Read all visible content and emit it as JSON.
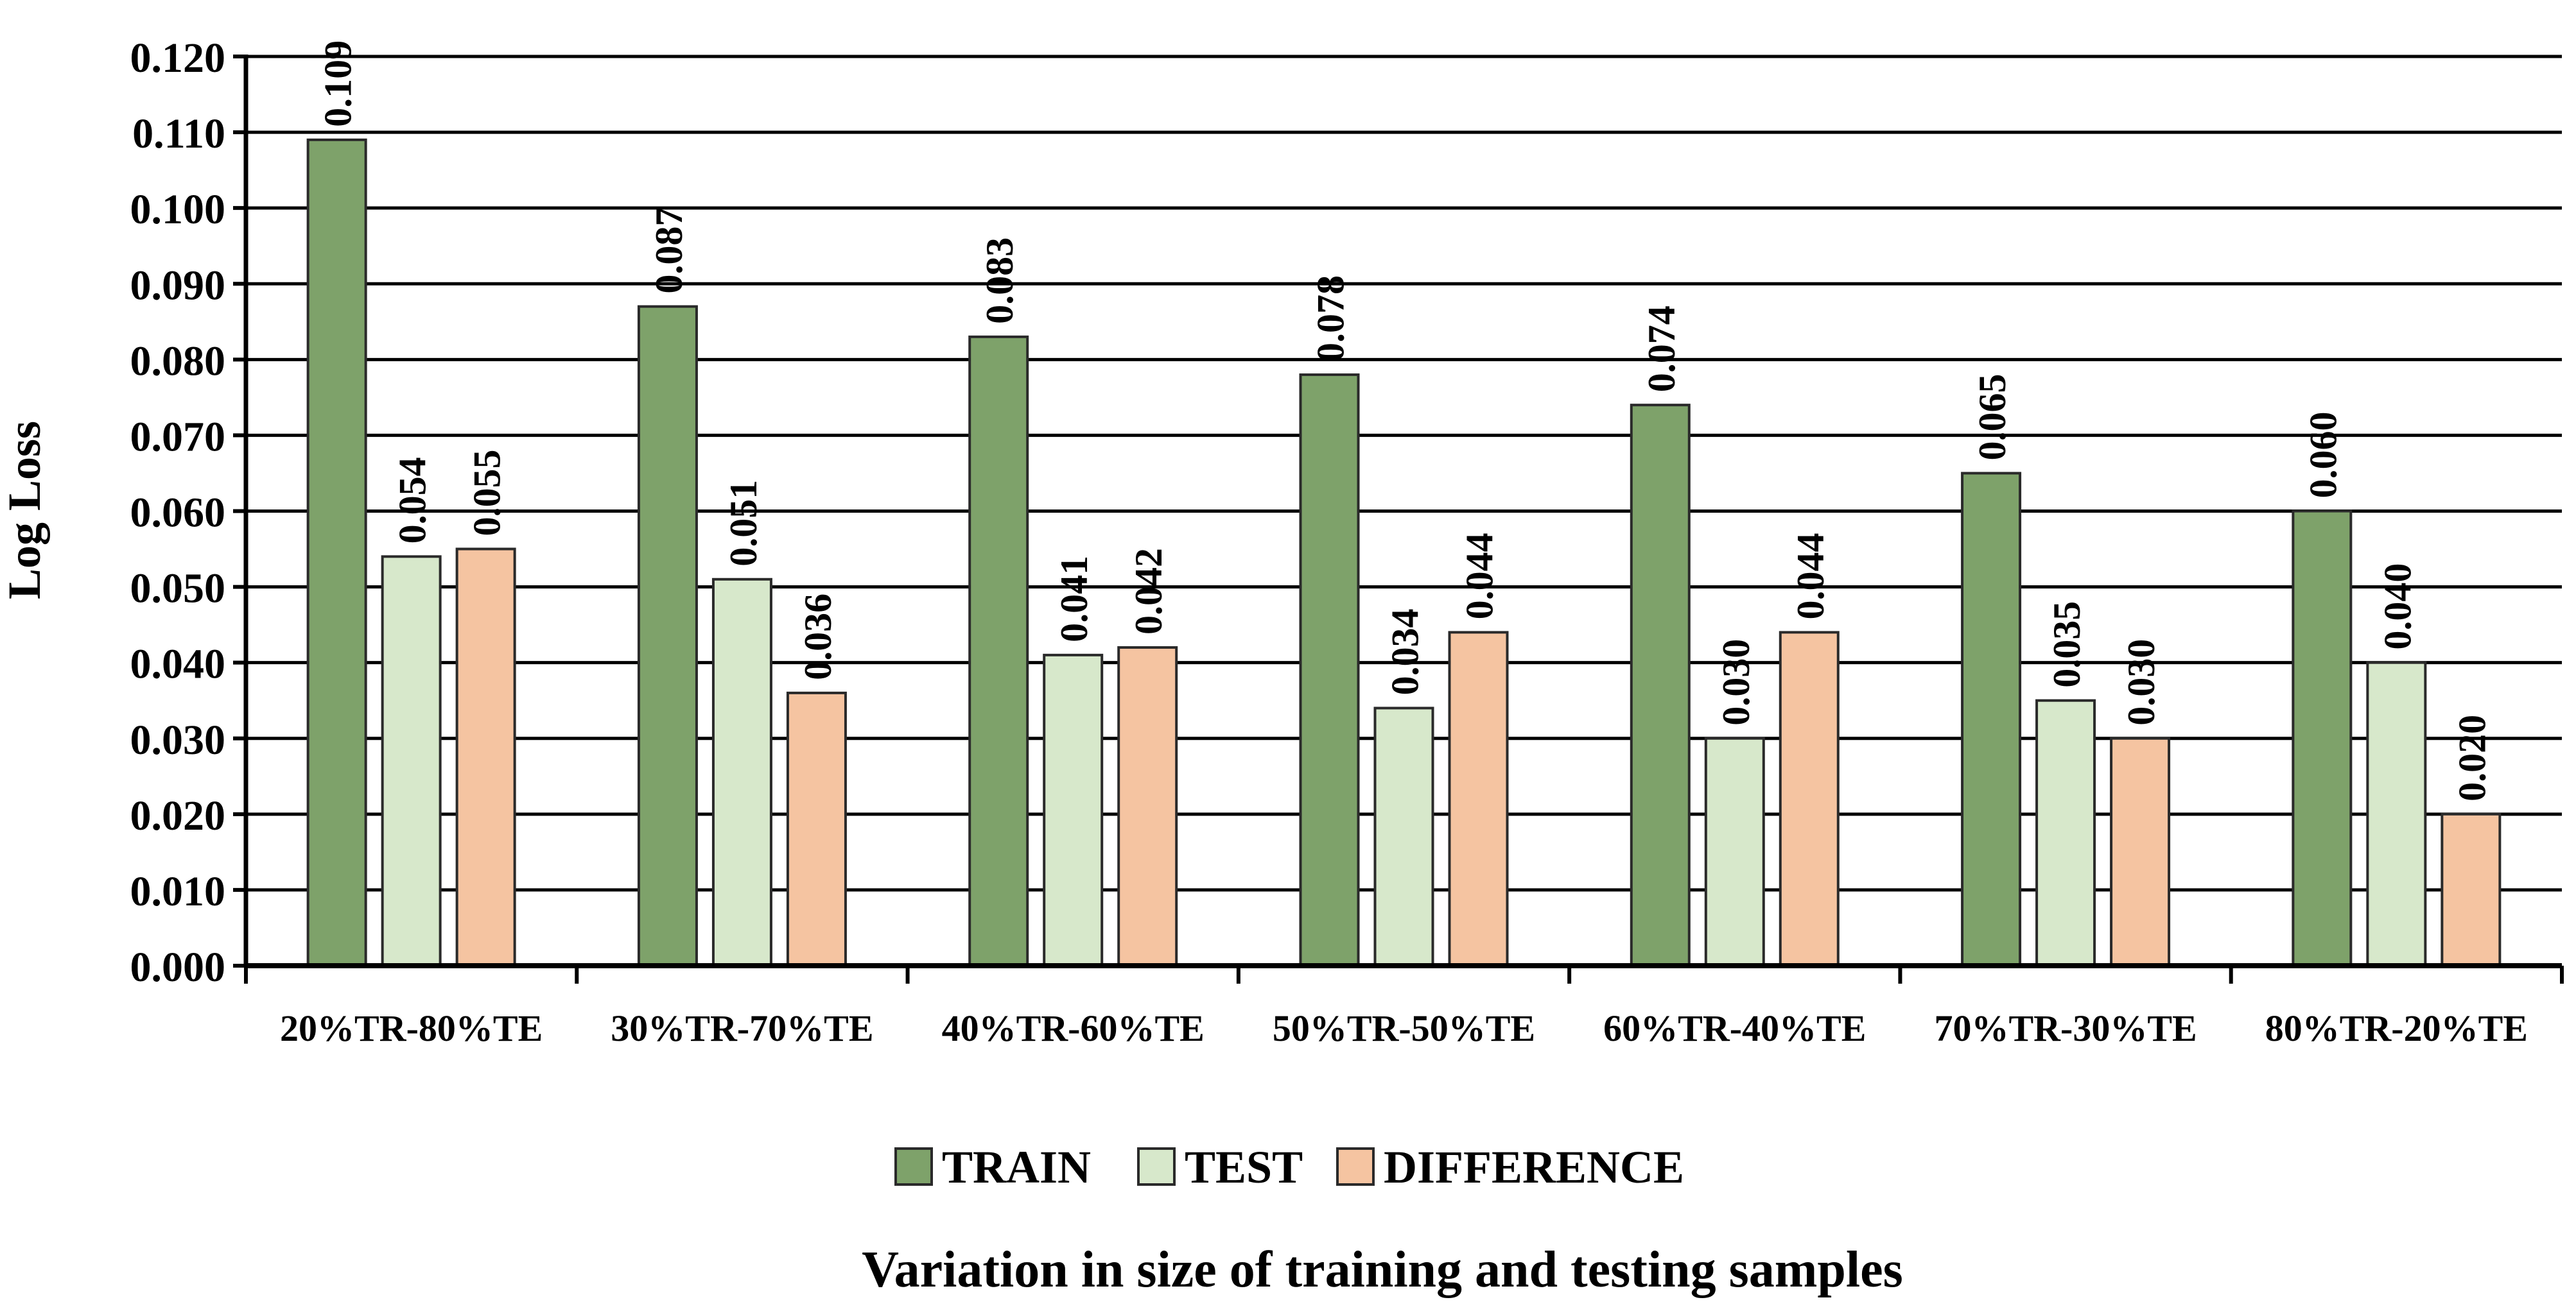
{
  "chart_data": {
    "type": "bar",
    "title": "",
    "xlabel": "Variation in size of training and testing samples",
    "ylabel": "Log Loss",
    "ylim": [
      0,
      0.12
    ],
    "yticks": [
      "0.000",
      "0.010",
      "0.020",
      "0.030",
      "0.040",
      "0.050",
      "0.060",
      "0.070",
      "0.080",
      "0.090",
      "0.100",
      "0.110",
      "0.120"
    ],
    "categories": [
      "20%TR-80%TE",
      "30%TR-70%TE",
      "40%TR-60%TE",
      "50%TR-50%TE",
      "60%TR-40%TE",
      "70%TR-30%TE",
      "80%TR-20%TE"
    ],
    "series": [
      {
        "name": "TRAIN",
        "color": "#7ea26a",
        "values": [
          0.109,
          0.087,
          0.083,
          0.078,
          0.074,
          0.065,
          0.06
        ],
        "labels": [
          "0.109",
          "0.087",
          "0.083",
          "0.078",
          "0.074",
          "0.065",
          "0.060"
        ]
      },
      {
        "name": "TEST",
        "color": "#d7e8cb",
        "values": [
          0.054,
          0.051,
          0.041,
          0.034,
          0.03,
          0.035,
          0.04
        ],
        "labels": [
          "0.054",
          "0.051",
          "0.041",
          "0.034",
          "0.030",
          "0.035",
          "0.040"
        ]
      },
      {
        "name": "DIFFERENCE",
        "color": "#f5c4a1",
        "values": [
          0.055,
          0.036,
          0.042,
          0.044,
          0.044,
          0.03,
          0.02
        ],
        "labels": [
          "0.055",
          "0.036",
          "0.042",
          "0.044",
          "0.044",
          "0.030",
          "0.020"
        ]
      }
    ],
    "legend_position": "bottom-center",
    "grid": true
  }
}
